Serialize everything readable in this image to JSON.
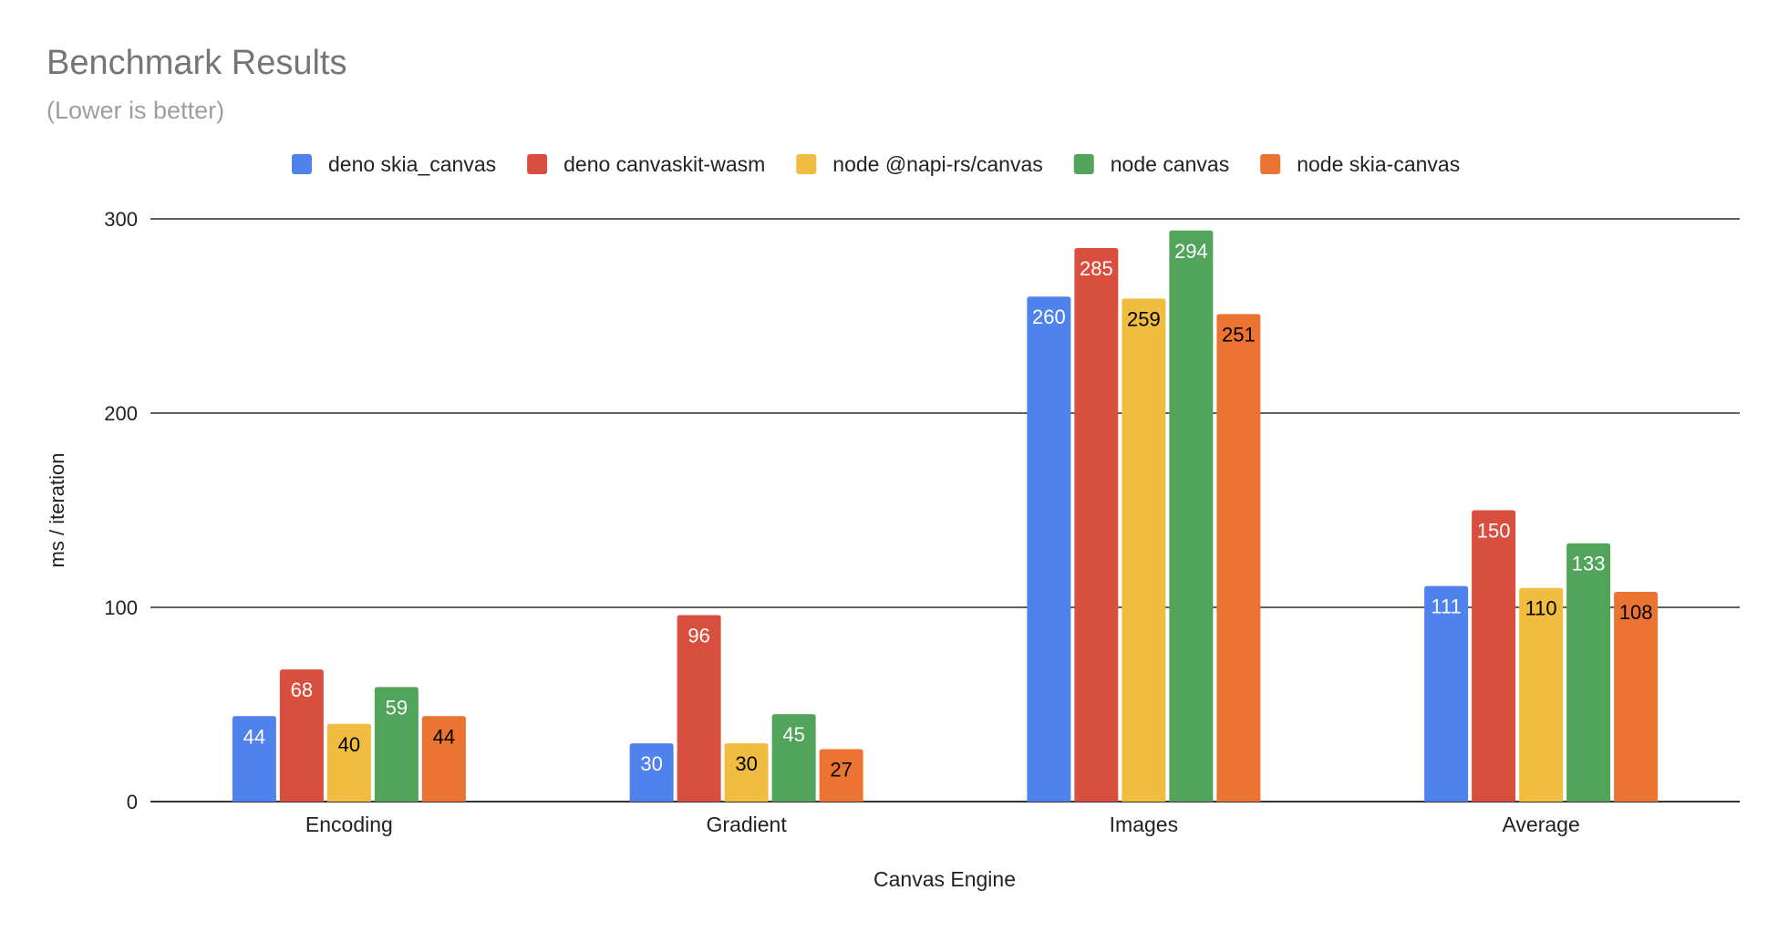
{
  "chart_data": {
    "type": "bar",
    "title": "Benchmark Results",
    "subtitle": "(Lower is better)",
    "xlabel": "Canvas Engine",
    "ylabel": "ms / iteration",
    "categories": [
      "Encoding",
      "Gradient",
      "Images",
      "Average"
    ],
    "ylim": [
      0,
      300
    ],
    "yticks": [
      0,
      100,
      200,
      300
    ],
    "grid": true,
    "legend_position": "top",
    "series": [
      {
        "name": "deno skia_canvas",
        "color": "#5082ee",
        "label_color": "#ffffff",
        "values": [
          44,
          30,
          260,
          111
        ]
      },
      {
        "name": "deno canvaskit-wasm",
        "color": "#d94f3f",
        "label_color": "#ffffff",
        "values": [
          68,
          96,
          285,
          150
        ]
      },
      {
        "name": "node @napi-rs/canvas",
        "color": "#f0bd41",
        "label_color": "#000000",
        "values": [
          40,
          30,
          259,
          110
        ]
      },
      {
        "name": "node canvas",
        "color": "#52a45a",
        "label_color": "#ffffff",
        "values": [
          59,
          45,
          294,
          133
        ]
      },
      {
        "name": "node skia-canvas",
        "color": "#ec7432",
        "label_color": "#000000",
        "values": [
          44,
          27,
          251,
          108
        ]
      }
    ]
  }
}
